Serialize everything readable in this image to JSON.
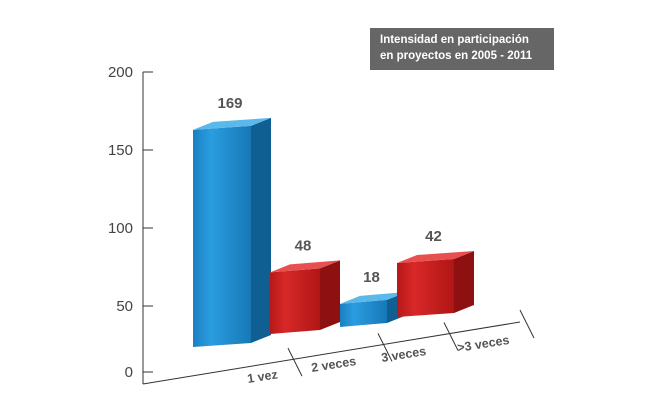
{
  "chart_data": {
    "type": "bar",
    "title": "Intensidad en participación en proyectos en 2005 - 2011",
    "title_lines": [
      "Intensidad en participación",
      "en proyectos en 2005 - 2011"
    ],
    "categories": [
      "1 vez",
      "2 veces",
      "3 veces",
      ">3 veces"
    ],
    "values": [
      169,
      48,
      18,
      42
    ],
    "value_labels": [
      "169",
      "48",
      "18",
      "42"
    ],
    "y_ticks": [
      "0",
      "50",
      "100",
      "150",
      "200"
    ],
    "ylim": [
      0,
      200
    ],
    "xlabel": "",
    "ylabel": "",
    "grid": false,
    "legend": "none",
    "bar_colors": [
      "#2a95d4",
      "#d42a2a",
      "#2a95d4",
      "#d42a2a"
    ],
    "style": "3d"
  }
}
